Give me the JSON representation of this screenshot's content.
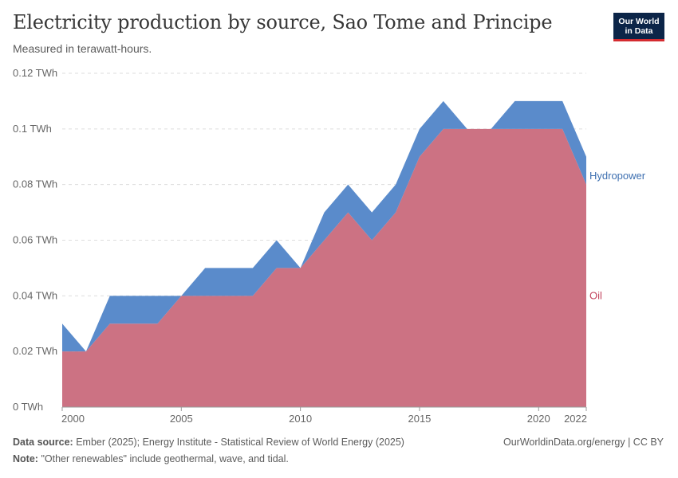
{
  "header": {
    "title": "Electricity production by source, Sao Tome and Principe",
    "subtitle": "Measured in terawatt-hours."
  },
  "logo": {
    "line1": "Our World",
    "line2": "in Data",
    "bg_color": "#0c2548",
    "accent_color": "#d42b30"
  },
  "chart_data": {
    "type": "area",
    "stacked": true,
    "x": [
      2000,
      2001,
      2002,
      2003,
      2004,
      2005,
      2006,
      2007,
      2008,
      2009,
      2010,
      2011,
      2012,
      2013,
      2014,
      2015,
      2016,
      2017,
      2018,
      2019,
      2020,
      2021,
      2022
    ],
    "series": [
      {
        "name": "Oil",
        "color": "#cc7283",
        "label_color": "#c2435c",
        "values": [
          0.02,
          0.02,
          0.03,
          0.03,
          0.03,
          0.04,
          0.04,
          0.04,
          0.04,
          0.05,
          0.05,
          0.06,
          0.07,
          0.06,
          0.07,
          0.09,
          0.1,
          0.1,
          0.1,
          0.1,
          0.1,
          0.1,
          0.08
        ]
      },
      {
        "name": "Hydropower",
        "color": "#5a8bcb",
        "label_color": "#3d6fb0",
        "values": [
          0.01,
          0.0,
          0.01,
          0.01,
          0.01,
          0.0,
          0.01,
          0.01,
          0.01,
          0.01,
          0.0,
          0.01,
          0.01,
          0.01,
          0.01,
          0.01,
          0.01,
          0.0,
          0.0,
          0.01,
          0.01,
          0.01,
          0.01
        ]
      }
    ],
    "y_ticks": [
      0,
      0.02,
      0.04,
      0.06,
      0.08,
      0.1,
      0.12
    ],
    "y_tick_labels": [
      "0 TWh",
      "0.02 TWh",
      "0.04 TWh",
      "0.06 TWh",
      "0.08 TWh",
      "0.1 TWh",
      "0.12 TWh"
    ],
    "x_ticks": [
      2000,
      2005,
      2010,
      2015,
      2020,
      2022
    ],
    "x_tick_labels": [
      "2000",
      "2005",
      "2010",
      "2015",
      "2020",
      "2022"
    ],
    "ylim": [
      0,
      0.12
    ],
    "xlim": [
      2000,
      2022
    ],
    "grid": true,
    "legend": "right, inline labels"
  },
  "footer": {
    "source_label": "Data source:",
    "source_text": "Ember (2025); Energy Institute - Statistical Review of World Energy (2025)",
    "note_label": "Note:",
    "note_text": "\"Other renewables\" include geothermal, wave, and tidal.",
    "credit": "OurWorldinData.org/energy | CC BY"
  }
}
